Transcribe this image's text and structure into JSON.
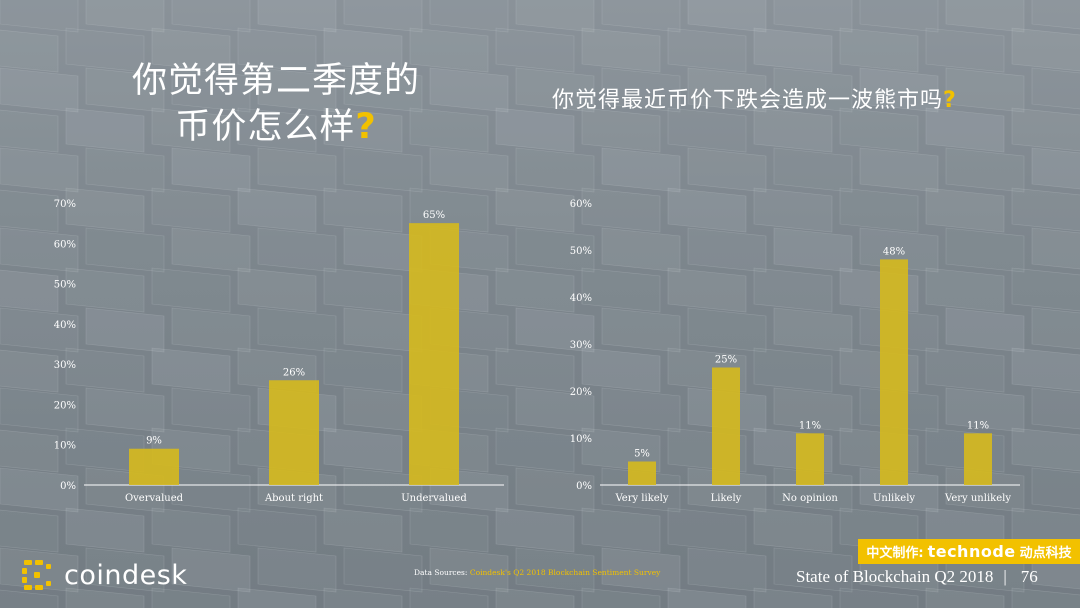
{
  "title_left_line1": "你觉得第二季度的",
  "title_left_line2": "币价怎么样",
  "title_right": "你觉得最近币价下跌会造成一波熊市吗",
  "question_mark": "?",
  "colors": {
    "bar": "#d4b820",
    "accent": "#f2c100",
    "text": "#ffffff"
  },
  "chart_data": [
    {
      "type": "bar",
      "categories": [
        "Overvalued",
        "About right",
        "Undervalued"
      ],
      "values": [
        9,
        26,
        65
      ],
      "value_labels": [
        "9%",
        "26%",
        "65%"
      ],
      "yticks": [
        0,
        10,
        20,
        30,
        40,
        50,
        60,
        70
      ],
      "ytick_labels": [
        "0%",
        "10%",
        "20%",
        "30%",
        "40%",
        "50%",
        "60%",
        "70%"
      ],
      "ylim": [
        0,
        70
      ],
      "grid": false
    },
    {
      "type": "bar",
      "categories": [
        "Very likely",
        "Likely",
        "No opinion",
        "Unlikely",
        "Very unlikely"
      ],
      "values": [
        5,
        25,
        11,
        48,
        11
      ],
      "value_labels": [
        "5%",
        "25%",
        "11%",
        "48%",
        "11%"
      ],
      "yticks": [
        0,
        10,
        20,
        30,
        40,
        50,
        60
      ],
      "ytick_labels": [
        "0%",
        "10%",
        "20%",
        "30%",
        "40%",
        "50%",
        "60%"
      ],
      "ylim": [
        0,
        60
      ],
      "grid": false
    }
  ],
  "footer": {
    "source_prefix": "Data Sources: ",
    "source_link": "Coindesk's Q2 2018 Blockchain Sentiment Survey",
    "report": "State of Blockchain Q2 2018",
    "separator": "|",
    "page_number": "76"
  },
  "badge": {
    "prefix": "中文制作:",
    "brand": "technode",
    "suffix": "动点科技"
  },
  "logo": {
    "name": "coindesk",
    "icon": "coindesk-logo-icon"
  }
}
